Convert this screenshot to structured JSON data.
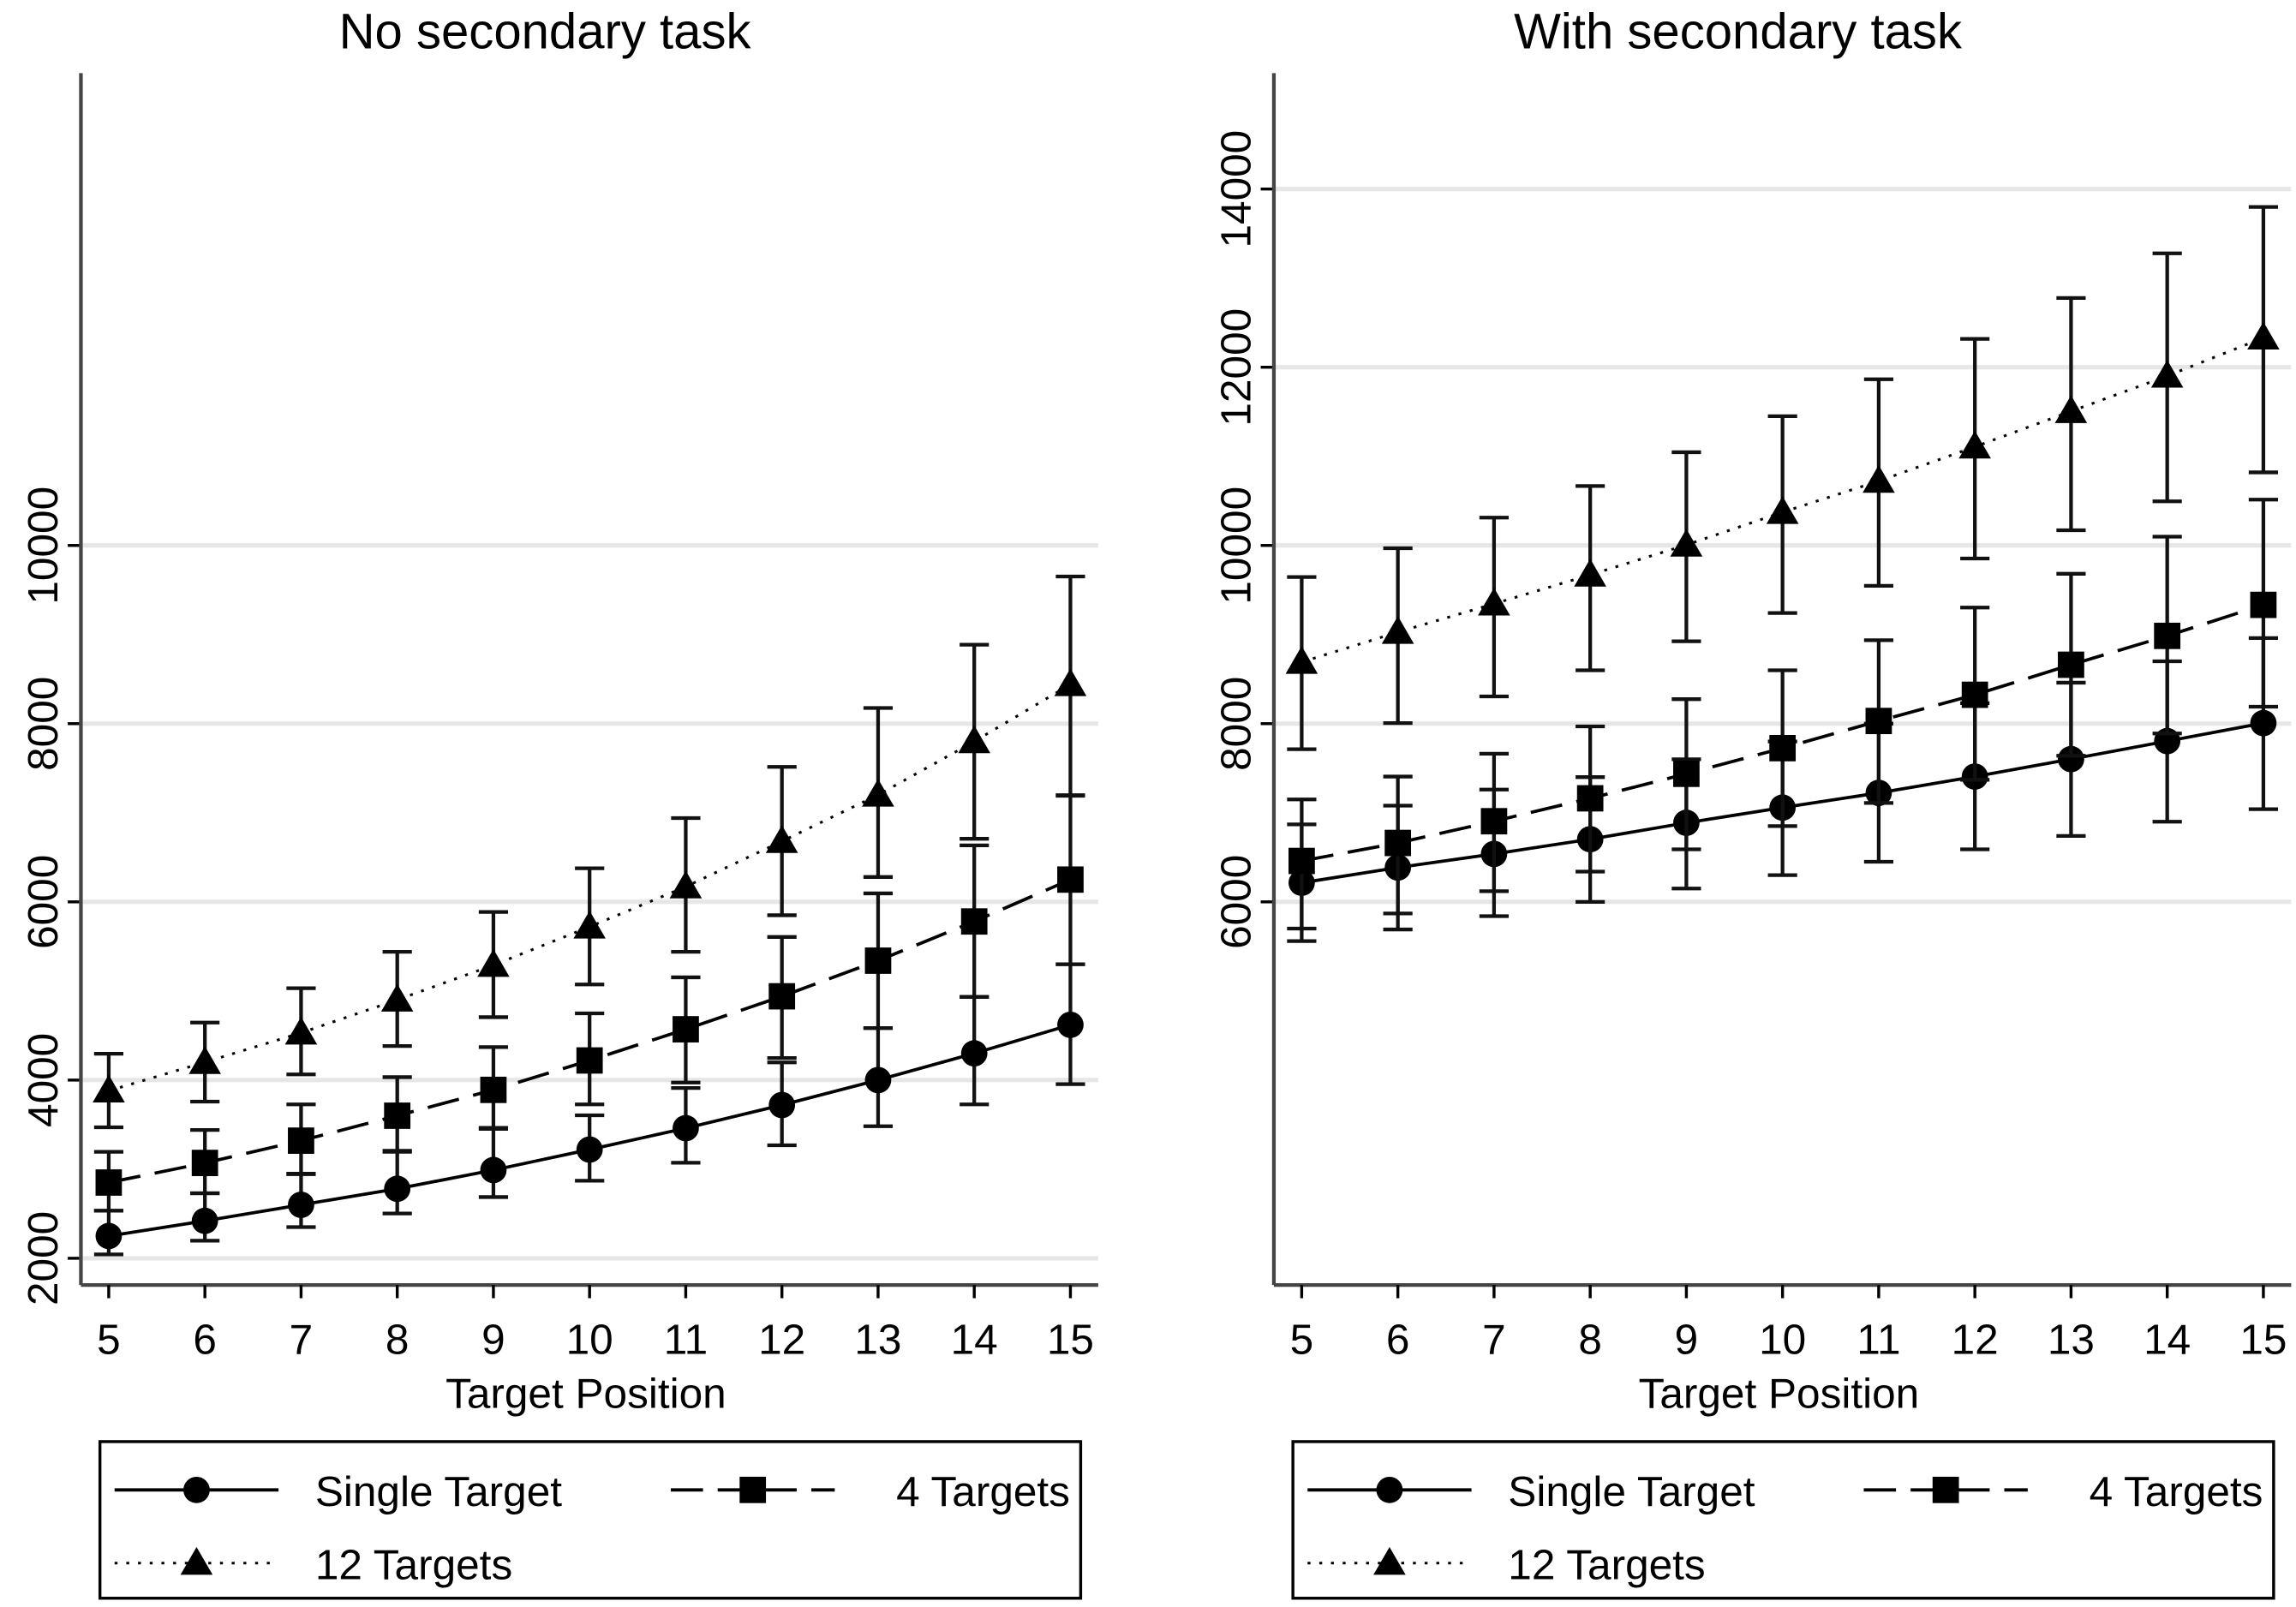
{
  "chart_data": [
    {
      "type": "line",
      "title": "No secondary task",
      "xlabel": "Target Position",
      "ylabel": "",
      "x": [
        5,
        6,
        7,
        8,
        9,
        10,
        11,
        12,
        13,
        14,
        15
      ],
      "xticks": [
        "5",
        "6",
        "7",
        "8",
        "9",
        "10",
        "11",
        "12",
        "13",
        "14",
        "15"
      ],
      "yticks": [
        2000,
        4000,
        6000,
        8000,
        10000
      ],
      "ytick_labels": [
        "2000",
        "4000",
        "6000",
        "8000",
        "10000"
      ],
      "ylim": [
        1700,
        15300
      ],
      "grid": true,
      "legend_position": "bottom",
      "series": [
        {
          "name": "Single Target",
          "marker": "circle",
          "line": "solid",
          "values": [
            2250,
            2420,
            2600,
            2780,
            2990,
            3220,
            3460,
            3720,
            4000,
            4300,
            4620
          ],
          "ci_low": [
            2044,
            2197,
            2350,
            2503,
            2687,
            2870,
            3072,
            3268,
            3482,
            3727,
            3954
          ],
          "ci_high": [
            2534,
            2730,
            2950,
            3195,
            3452,
            3605,
            3911,
            4198,
            4584,
            4933,
            5300
          ]
        },
        {
          "name": "4 Targets",
          "marker": "square",
          "line": "dashed",
          "values": [
            2850,
            3070,
            3320,
            3600,
            3890,
            4220,
            4570,
            4940,
            5340,
            5780,
            6250
          ],
          "ci_low": [
            2534,
            2730,
            2944,
            3207,
            3464,
            3727,
            3972,
            4247,
            4584,
            4933,
            5300
          ],
          "ci_high": [
            3195,
            3440,
            3727,
            4033,
            4370,
            4749,
            5153,
            5606,
            6095,
            6634,
            7197
          ]
        },
        {
          "name": "12 Targets",
          "marker": "triangle",
          "line": "dotted",
          "values": [
            3880,
            4200,
            4530,
            4900,
            5290,
            5720,
            6170,
            6680,
            7200,
            7800,
            8440
          ],
          "ci_low": [
            3470,
            3758,
            4064,
            4382,
            4706,
            5073,
            5440,
            5850,
            6279,
            6708,
            7191
          ],
          "ci_high": [
            4296,
            4645,
            5031,
            5440,
            5887,
            6377,
            6940,
            7515,
            8176,
            8886,
            9651
          ]
        }
      ]
    },
    {
      "type": "line",
      "title": "With secondary task",
      "xlabel": "Target Position",
      "ylabel": "",
      "x": [
        5,
        6,
        7,
        8,
        9,
        10,
        11,
        12,
        13,
        14,
        15
      ],
      "xticks": [
        "5",
        "6",
        "7",
        "8",
        "9",
        "10",
        "11",
        "12",
        "13",
        "14",
        "15"
      ],
      "yticks": [
        6000,
        8000,
        10000,
        12000,
        14000
      ],
      "ytick_labels": [
        "6000",
        "8000",
        "10000",
        "12000",
        "14000"
      ],
      "ylim": [
        1700,
        15300
      ],
      "grid": true,
      "legend_position": "bottom",
      "series": [
        {
          "name": "Single Target",
          "marker": "circle",
          "line": "solid",
          "values": [
            6214,
            6385,
            6538,
            6703,
            6887,
            7058,
            7223,
            7406,
            7602,
            7804,
            8006
          ],
          "ci_low": [
            5560,
            5690,
            5840,
            6000,
            6150,
            6300,
            6450,
            6590,
            6740,
            6900,
            7040
          ],
          "ci_high": [
            6870,
            7080,
            7260,
            7400,
            7600,
            7800,
            8000,
            8230,
            8460,
            8700,
            8960
          ]
        },
        {
          "name": "4 Targets",
          "marker": "square",
          "line": "dashed",
          "values": [
            6459,
            6661,
            6905,
            7162,
            7437,
            7725,
            8030,
            8324,
            8661,
            8985,
            9333
          ],
          "ci_low": [
            5700,
            5870,
            6120,
            6340,
            6590,
            6850,
            7110,
            7370,
            7640,
            7890,
            8190
          ],
          "ci_high": [
            7150,
            7406,
            7663,
            7969,
            8275,
            8599,
            8936,
            9303,
            9682,
            10098,
            10514
          ]
        },
        {
          "name": "12 Targets",
          "marker": "triangle",
          "line": "dotted",
          "values": [
            8691,
            9027,
            9345,
            9670,
            10006,
            10373,
            10722,
            11107,
            11505,
            11902,
            12330
          ],
          "ci_low": [
            7713,
            8006,
            8306,
            8599,
            8924,
            9242,
            9547,
            9853,
            10171,
            10495,
            10820
          ],
          "ci_high": [
            9645,
            9969,
            10312,
            10667,
            11046,
            11450,
            11865,
            12318,
            12777,
            13278,
            13798
          ]
        }
      ]
    }
  ]
}
